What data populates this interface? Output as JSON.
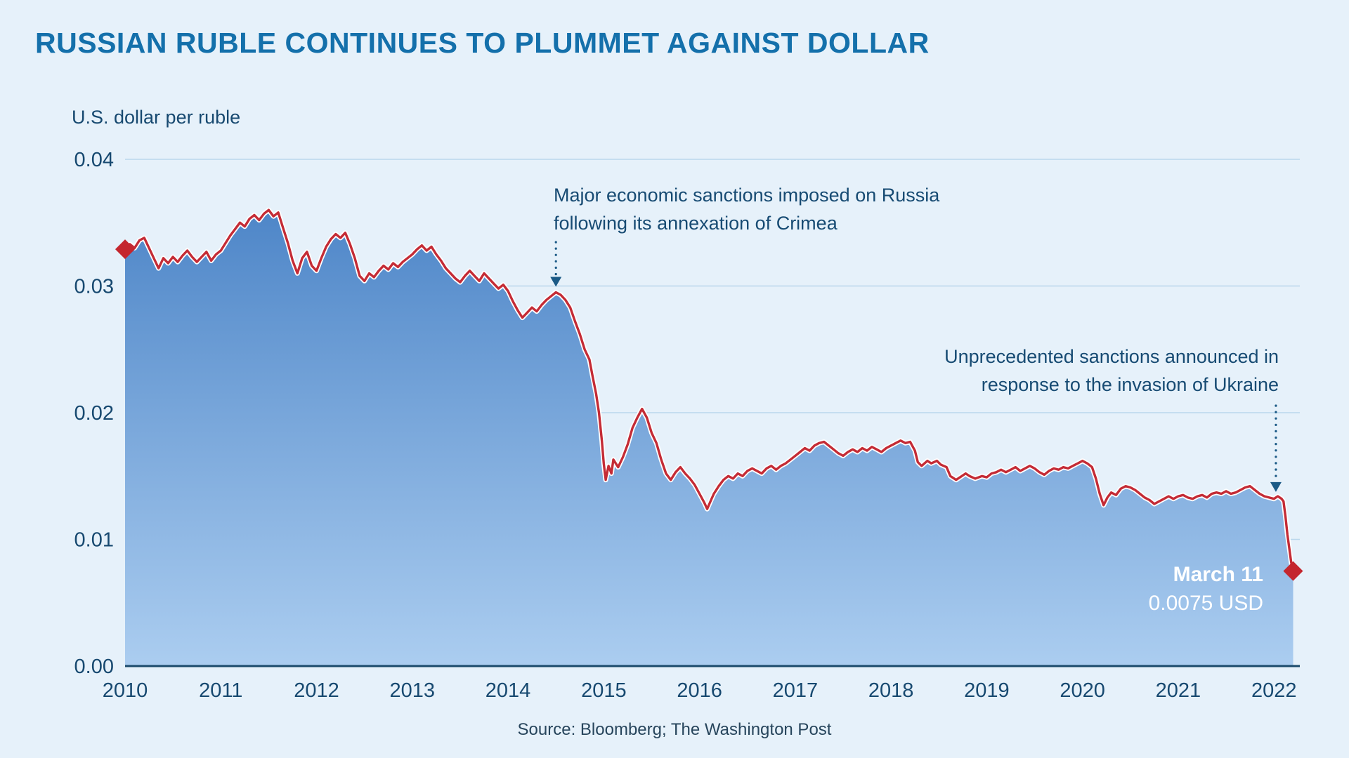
{
  "chart_data": {
    "type": "area",
    "title": "RUSSIAN RUBLE CONTINUES TO PLUMMET AGAINST DOLLAR",
    "ylabel": "U.S. dollar per ruble",
    "xlabel": "",
    "source": "Source: Bloomberg; The Washington Post",
    "xlim": [
      2010,
      2022.27
    ],
    "ylim": [
      0,
      0.04
    ],
    "grid": "horizontal",
    "y_ticks": [
      {
        "value": 0.0,
        "label": "0.00"
      },
      {
        "value": 0.01,
        "label": "0.01"
      },
      {
        "value": 0.02,
        "label": "0.02"
      },
      {
        "value": 0.03,
        "label": "0.03"
      },
      {
        "value": 0.04,
        "label": "0.04"
      }
    ],
    "x_ticks": [
      {
        "value": 2010,
        "label": "2010"
      },
      {
        "value": 2011,
        "label": "2011"
      },
      {
        "value": 2012,
        "label": "2012"
      },
      {
        "value": 2013,
        "label": "2013"
      },
      {
        "value": 2014,
        "label": "2014"
      },
      {
        "value": 2015,
        "label": "2015"
      },
      {
        "value": 2016,
        "label": "2016"
      },
      {
        "value": 2017,
        "label": "2017"
      },
      {
        "value": 2018,
        "label": "2018"
      },
      {
        "value": 2019,
        "label": "2019"
      },
      {
        "value": 2020,
        "label": "2020"
      },
      {
        "value": 2021,
        "label": "2021"
      },
      {
        "value": 2022,
        "label": "2022"
      }
    ],
    "points": [
      [
        2010.0,
        0.0329
      ],
      [
        2010.05,
        0.0333
      ],
      [
        2010.1,
        0.033
      ],
      [
        2010.15,
        0.0336
      ],
      [
        2010.2,
        0.0338
      ],
      [
        2010.25,
        0.033
      ],
      [
        2010.3,
        0.0322
      ],
      [
        2010.35,
        0.0314
      ],
      [
        2010.4,
        0.0322
      ],
      [
        2010.45,
        0.0318
      ],
      [
        2010.5,
        0.0323
      ],
      [
        2010.55,
        0.0319
      ],
      [
        2010.6,
        0.0324
      ],
      [
        2010.65,
        0.0328
      ],
      [
        2010.7,
        0.0323
      ],
      [
        2010.75,
        0.0319
      ],
      [
        2010.8,
        0.0323
      ],
      [
        2010.85,
        0.0327
      ],
      [
        2010.9,
        0.032
      ],
      [
        2010.95,
        0.0325
      ],
      [
        2011.0,
        0.0328
      ],
      [
        2011.05,
        0.0334
      ],
      [
        2011.1,
        0.034
      ],
      [
        2011.15,
        0.0345
      ],
      [
        2011.2,
        0.035
      ],
      [
        2011.25,
        0.0347
      ],
      [
        2011.3,
        0.0353
      ],
      [
        2011.35,
        0.0356
      ],
      [
        2011.4,
        0.0352
      ],
      [
        2011.45,
        0.0357
      ],
      [
        2011.5,
        0.036
      ],
      [
        2011.55,
        0.0355
      ],
      [
        2011.6,
        0.0358
      ],
      [
        2011.65,
        0.0346
      ],
      [
        2011.7,
        0.0334
      ],
      [
        2011.75,
        0.032
      ],
      [
        2011.8,
        0.031
      ],
      [
        2011.85,
        0.0322
      ],
      [
        2011.9,
        0.0327
      ],
      [
        2011.95,
        0.0316
      ],
      [
        2012.0,
        0.0312
      ],
      [
        2012.05,
        0.0322
      ],
      [
        2012.1,
        0.0331
      ],
      [
        2012.15,
        0.0337
      ],
      [
        2012.2,
        0.0341
      ],
      [
        2012.25,
        0.0338
      ],
      [
        2012.3,
        0.0342
      ],
      [
        2012.35,
        0.0333
      ],
      [
        2012.4,
        0.0322
      ],
      [
        2012.45,
        0.0308
      ],
      [
        2012.5,
        0.0304
      ],
      [
        2012.55,
        0.031
      ],
      [
        2012.6,
        0.0307
      ],
      [
        2012.65,
        0.0312
      ],
      [
        2012.7,
        0.0316
      ],
      [
        2012.75,
        0.0313
      ],
      [
        2012.8,
        0.0318
      ],
      [
        2012.85,
        0.0315
      ],
      [
        2012.9,
        0.0319
      ],
      [
        2012.95,
        0.0322
      ],
      [
        2013.0,
        0.0325
      ],
      [
        2013.05,
        0.0329
      ],
      [
        2013.1,
        0.0332
      ],
      [
        2013.15,
        0.0328
      ],
      [
        2013.2,
        0.0331
      ],
      [
        2013.25,
        0.0325
      ],
      [
        2013.3,
        0.032
      ],
      [
        2013.35,
        0.0314
      ],
      [
        2013.4,
        0.031
      ],
      [
        2013.45,
        0.0306
      ],
      [
        2013.5,
        0.0303
      ],
      [
        2013.55,
        0.0308
      ],
      [
        2013.6,
        0.0312
      ],
      [
        2013.65,
        0.0308
      ],
      [
        2013.7,
        0.0304
      ],
      [
        2013.75,
        0.031
      ],
      [
        2013.8,
        0.0306
      ],
      [
        2013.85,
        0.0302
      ],
      [
        2013.9,
        0.0298
      ],
      [
        2013.95,
        0.0301
      ],
      [
        2014.0,
        0.0296
      ],
      [
        2014.05,
        0.0288
      ],
      [
        2014.1,
        0.0281
      ],
      [
        2014.15,
        0.0275
      ],
      [
        2014.2,
        0.0279
      ],
      [
        2014.25,
        0.0283
      ],
      [
        2014.3,
        0.028
      ],
      [
        2014.35,
        0.0285
      ],
      [
        2014.4,
        0.0289
      ],
      [
        2014.45,
        0.0292
      ],
      [
        2014.5,
        0.0295
      ],
      [
        2014.55,
        0.0293
      ],
      [
        2014.6,
        0.0289
      ],
      [
        2014.65,
        0.0283
      ],
      [
        2014.7,
        0.0272
      ],
      [
        2014.75,
        0.0262
      ],
      [
        2014.8,
        0.025
      ],
      [
        2014.85,
        0.0242
      ],
      [
        2014.88,
        0.023
      ],
      [
        2014.92,
        0.0215
      ],
      [
        2014.95,
        0.02
      ],
      [
        2014.98,
        0.0178
      ],
      [
        2015.0,
        0.016
      ],
      [
        2015.02,
        0.0147
      ],
      [
        2015.05,
        0.0158
      ],
      [
        2015.08,
        0.0152
      ],
      [
        2015.1,
        0.0163
      ],
      [
        2015.15,
        0.0157
      ],
      [
        2015.2,
        0.0165
      ],
      [
        2015.25,
        0.0175
      ],
      [
        2015.3,
        0.0188
      ],
      [
        2015.35,
        0.0196
      ],
      [
        2015.4,
        0.0203
      ],
      [
        2015.45,
        0.0196
      ],
      [
        2015.5,
        0.0184
      ],
      [
        2015.55,
        0.0176
      ],
      [
        2015.6,
        0.0163
      ],
      [
        2015.65,
        0.0152
      ],
      [
        2015.7,
        0.0147
      ],
      [
        2015.75,
        0.0153
      ],
      [
        2015.8,
        0.0157
      ],
      [
        2015.85,
        0.0152
      ],
      [
        2015.9,
        0.0148
      ],
      [
        2015.95,
        0.0143
      ],
      [
        2016.0,
        0.0136
      ],
      [
        2016.05,
        0.0129
      ],
      [
        2016.08,
        0.0124
      ],
      [
        2016.12,
        0.0131
      ],
      [
        2016.15,
        0.0136
      ],
      [
        2016.2,
        0.0142
      ],
      [
        2016.25,
        0.0147
      ],
      [
        2016.3,
        0.015
      ],
      [
        2016.35,
        0.0148
      ],
      [
        2016.4,
        0.0152
      ],
      [
        2016.45,
        0.015
      ],
      [
        2016.5,
        0.0154
      ],
      [
        2016.55,
        0.0156
      ],
      [
        2016.6,
        0.0154
      ],
      [
        2016.65,
        0.0152
      ],
      [
        2016.7,
        0.0156
      ],
      [
        2016.75,
        0.0158
      ],
      [
        2016.8,
        0.0155
      ],
      [
        2016.85,
        0.0158
      ],
      [
        2016.9,
        0.016
      ],
      [
        2016.95,
        0.0163
      ],
      [
        2017.0,
        0.0166
      ],
      [
        2017.05,
        0.0169
      ],
      [
        2017.1,
        0.0172
      ],
      [
        2017.15,
        0.017
      ],
      [
        2017.2,
        0.0174
      ],
      [
        2017.25,
        0.0176
      ],
      [
        2017.3,
        0.0177
      ],
      [
        2017.35,
        0.0174
      ],
      [
        2017.4,
        0.0171
      ],
      [
        2017.45,
        0.0168
      ],
      [
        2017.5,
        0.0166
      ],
      [
        2017.55,
        0.0169
      ],
      [
        2017.6,
        0.0171
      ],
      [
        2017.65,
        0.0169
      ],
      [
        2017.7,
        0.0172
      ],
      [
        2017.75,
        0.017
      ],
      [
        2017.8,
        0.0173
      ],
      [
        2017.85,
        0.0171
      ],
      [
        2017.9,
        0.0169
      ],
      [
        2017.95,
        0.0172
      ],
      [
        2018.0,
        0.0174
      ],
      [
        2018.05,
        0.0176
      ],
      [
        2018.1,
        0.0178
      ],
      [
        2018.15,
        0.0176
      ],
      [
        2018.2,
        0.0177
      ],
      [
        2018.25,
        0.017
      ],
      [
        2018.28,
        0.0161
      ],
      [
        2018.32,
        0.0158
      ],
      [
        2018.38,
        0.0162
      ],
      [
        2018.42,
        0.016
      ],
      [
        2018.48,
        0.0162
      ],
      [
        2018.52,
        0.0159
      ],
      [
        2018.58,
        0.0157
      ],
      [
        2018.62,
        0.015
      ],
      [
        2018.68,
        0.0147
      ],
      [
        2018.72,
        0.0149
      ],
      [
        2018.78,
        0.0152
      ],
      [
        2018.82,
        0.015
      ],
      [
        2018.88,
        0.0148
      ],
      [
        2018.95,
        0.015
      ],
      [
        2019.0,
        0.0149
      ],
      [
        2019.05,
        0.0152
      ],
      [
        2019.1,
        0.0153
      ],
      [
        2019.15,
        0.0155
      ],
      [
        2019.2,
        0.0153
      ],
      [
        2019.25,
        0.0155
      ],
      [
        2019.3,
        0.0157
      ],
      [
        2019.35,
        0.0154
      ],
      [
        2019.4,
        0.0156
      ],
      [
        2019.45,
        0.0158
      ],
      [
        2019.5,
        0.0156
      ],
      [
        2019.55,
        0.0153
      ],
      [
        2019.6,
        0.0151
      ],
      [
        2019.65,
        0.0154
      ],
      [
        2019.7,
        0.0156
      ],
      [
        2019.75,
        0.0155
      ],
      [
        2019.8,
        0.0157
      ],
      [
        2019.85,
        0.0156
      ],
      [
        2019.9,
        0.0158
      ],
      [
        2019.95,
        0.016
      ],
      [
        2020.0,
        0.0162
      ],
      [
        2020.05,
        0.016
      ],
      [
        2020.1,
        0.0157
      ],
      [
        2020.14,
        0.0148
      ],
      [
        2020.18,
        0.0136
      ],
      [
        2020.22,
        0.0127
      ],
      [
        2020.26,
        0.0133
      ],
      [
        2020.3,
        0.0137
      ],
      [
        2020.35,
        0.0135
      ],
      [
        2020.4,
        0.014
      ],
      [
        2020.45,
        0.0142
      ],
      [
        2020.5,
        0.0141
      ],
      [
        2020.55,
        0.0139
      ],
      [
        2020.6,
        0.0136
      ],
      [
        2020.65,
        0.0133
      ],
      [
        2020.7,
        0.0131
      ],
      [
        2020.75,
        0.0128
      ],
      [
        2020.8,
        0.013
      ],
      [
        2020.85,
        0.0132
      ],
      [
        2020.9,
        0.0134
      ],
      [
        2020.95,
        0.0132
      ],
      [
        2021.0,
        0.0134
      ],
      [
        2021.05,
        0.0135
      ],
      [
        2021.1,
        0.0133
      ],
      [
        2021.15,
        0.0132
      ],
      [
        2021.2,
        0.0134
      ],
      [
        2021.25,
        0.0135
      ],
      [
        2021.3,
        0.0133
      ],
      [
        2021.35,
        0.0136
      ],
      [
        2021.4,
        0.0137
      ],
      [
        2021.45,
        0.0136
      ],
      [
        2021.5,
        0.0138
      ],
      [
        2021.55,
        0.0136
      ],
      [
        2021.6,
        0.0137
      ],
      [
        2021.65,
        0.0139
      ],
      [
        2021.7,
        0.0141
      ],
      [
        2021.75,
        0.0142
      ],
      [
        2021.8,
        0.0139
      ],
      [
        2021.85,
        0.0136
      ],
      [
        2021.9,
        0.0134
      ],
      [
        2021.95,
        0.0133
      ],
      [
        2022.0,
        0.0132
      ],
      [
        2022.04,
        0.0134
      ],
      [
        2022.08,
        0.0132
      ],
      [
        2022.1,
        0.013
      ],
      [
        2022.12,
        0.0118
      ],
      [
        2022.14,
        0.0104
      ],
      [
        2022.16,
        0.0093
      ],
      [
        2022.18,
        0.0082
      ],
      [
        2022.2,
        0.0075
      ]
    ],
    "markers": [
      {
        "x": 2010.0,
        "y": 0.0329
      },
      {
        "x": 2022.2,
        "y": 0.0075
      }
    ],
    "annotations": [
      {
        "id": "crimea-sanctions",
        "lines": [
          "Major economic sanctions imposed on Russia",
          "following its annexation of Crimea"
        ],
        "arrow_x": 2014.5,
        "arrow_y": 0.0295
      },
      {
        "id": "ukraine-sanctions",
        "lines": [
          "Unprecedented sanctions announced in",
          "response to the invasion of Ukraine"
        ],
        "arrow_x": 2022.02,
        "arrow_y": 0.0133
      }
    ],
    "end_label": {
      "lines": [
        "March 11",
        "0.0075 USD"
      ]
    },
    "colors": {
      "background": "#e6f1fa",
      "title": "#1470ab",
      "text_dark": "#174b73",
      "line": "#c42b35",
      "line_halo": "#ffffff",
      "area_top": "#4e86c8",
      "area_bottom": "#abcdf0",
      "grid": "#bad7ec",
      "axis": "#1b4a6b",
      "marker": "#c4262e",
      "annotation_arrow": "#1b5a86"
    }
  }
}
